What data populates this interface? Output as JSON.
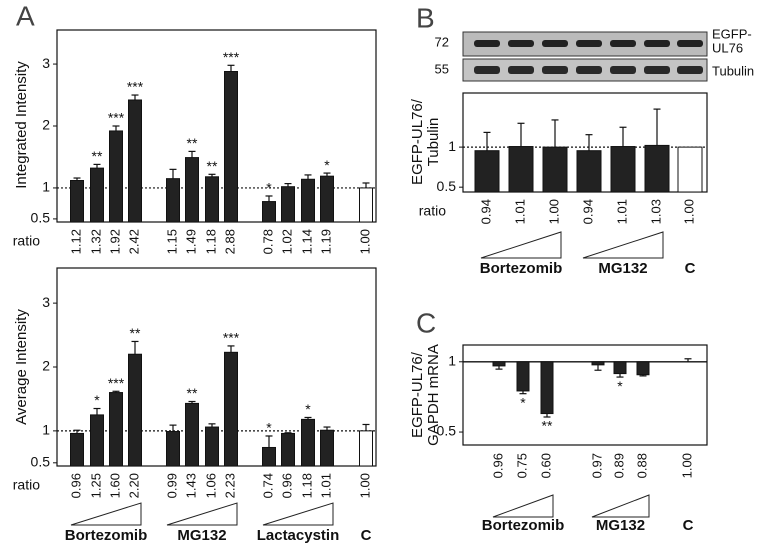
{
  "panels": [
    "A",
    "B",
    "C"
  ],
  "blot": {
    "markers": [
      "72",
      "55"
    ],
    "labels": [
      [
        "EGFP-",
        "UL76"
      ],
      [
        "Tubulin"
      ]
    ]
  },
  "chart_data": [
    {
      "type": "bar",
      "ylabel": [
        "Integrated Intensity"
      ],
      "ratio_label": "ratio",
      "ylim": [
        0.45,
        3.55
      ],
      "yticks": [
        0.5,
        1,
        2,
        3
      ],
      "log": false,
      "reference_line": 1,
      "values": [
        1.12,
        1.32,
        1.92,
        2.42,
        1.15,
        1.49,
        1.18,
        2.88,
        0.78,
        1.02,
        1.14,
        1.19,
        1.0
      ],
      "value_labels": [
        "1.12",
        "1.32",
        "1.92",
        "2.42",
        "1.15",
        "1.49",
        "1.18",
        "2.88",
        "0.78",
        "1.02",
        "1.14",
        "1.19",
        "1.00"
      ],
      "errors": [
        0.04,
        0.06,
        0.08,
        0.08,
        0.15,
        0.1,
        0.04,
        0.1,
        0.09,
        0.05,
        0.07,
        0.05,
        0.08
      ],
      "stars": [
        null,
        "**",
        "***",
        "***",
        null,
        "**",
        "**",
        "***",
        "*",
        null,
        null,
        "*",
        null
      ],
      "colors": [
        "#222",
        "#222",
        "#222",
        "#222",
        "#222",
        "#222",
        "#222",
        "#222",
        "#222",
        "#222",
        "#222",
        "#222",
        "#ffffff"
      ]
    },
    {
      "type": "bar",
      "ylabel": [
        "Average Intensity"
      ],
      "ratio_label": "ratio",
      "ylim": [
        0.45,
        3.55
      ],
      "yticks": [
        0.5,
        1,
        2,
        3
      ],
      "log": false,
      "reference_line": 1,
      "values": [
        0.96,
        1.25,
        1.6,
        2.2,
        0.99,
        1.43,
        1.06,
        2.23,
        0.74,
        0.96,
        1.18,
        1.01,
        1.0
      ],
      "value_labels": [
        "0.96",
        "1.25",
        "1.60",
        "2.20",
        "0.99",
        "1.43",
        "1.06",
        "2.23",
        "0.74",
        "0.96",
        "1.18",
        "1.01",
        "1.00"
      ],
      "errors": [
        0.05,
        0.1,
        0.02,
        0.2,
        0.1,
        0.03,
        0.05,
        0.1,
        0.18,
        0.01,
        0.03,
        0.05,
        0.1
      ],
      "stars": [
        null,
        "*",
        "***",
        "**",
        null,
        "**",
        null,
        "***",
        "*",
        null,
        "*",
        null,
        null
      ],
      "colors": [
        "#222",
        "#222",
        "#222",
        "#222",
        "#222",
        "#222",
        "#222",
        "#222",
        "#222",
        "#222",
        "#222",
        "#222",
        "#ffffff"
      ],
      "group_labels": [
        "Bortezomib",
        "MG132",
        "Lactacystin",
        "C"
      ]
    },
    {
      "type": "bar",
      "ylabel": [
        "EGFP-UL76/",
        "Tubulin"
      ],
      "ratio_label": "ratio",
      "ylim": [
        0.46,
        2.55
      ],
      "yticks": [
        0.5,
        1
      ],
      "log": true,
      "reference_line": 1,
      "values": [
        0.94,
        1.01,
        1.0,
        0.94,
        1.01,
        1.03,
        1.0
      ],
      "value_labels": [
        "0.94",
        "1.01",
        "1.00",
        "0.94",
        "1.01",
        "1.03",
        "1.00"
      ],
      "errors": [
        0.35,
        0.5,
        0.6,
        0.3,
        0.4,
        0.9,
        0
      ],
      "colors": [
        "#222",
        "#222",
        "#222",
        "#222",
        "#222",
        "#222",
        "#ffffff"
      ],
      "group_labels": [
        "Bortezomib",
        "MG132",
        "C"
      ]
    },
    {
      "type": "bar",
      "ylabel": [
        "EGFP-UL76/",
        "GAPDH mRNA"
      ],
      "ylim": [
        0.44,
        1.18
      ],
      "yticks": [
        0.5,
        1
      ],
      "log": true,
      "reference_line": 1,
      "values": [
        0.96,
        0.75,
        0.6,
        0.97,
        0.89,
        0.88,
        1.0
      ],
      "value_labels": [
        "0.96",
        "0.75",
        "0.60",
        "0.97",
        "0.89",
        "0.88",
        "1.00"
      ],
      "errors": [
        0.03,
        0.02,
        0.02,
        0.05,
        0.03,
        0.01,
        0.03
      ],
      "stars": [
        null,
        "*",
        "**",
        null,
        "*",
        null,
        null
      ],
      "colors": [
        "#222",
        "#222",
        "#222",
        "#222",
        "#222",
        "#222",
        "#ffffff"
      ],
      "group_labels": [
        "Bortezomib",
        "MG132",
        "C"
      ]
    }
  ]
}
